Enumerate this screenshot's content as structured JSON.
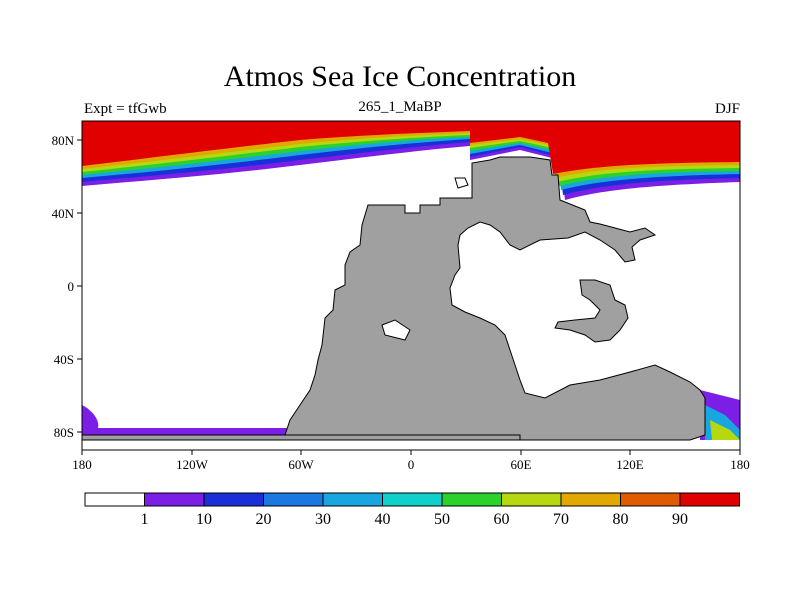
{
  "title": "Atmos Sea Ice Concentration",
  "subtitle_left": "Expt = tfGwb",
  "subtitle_center": "265_1_MaBP",
  "subtitle_right": "DJF",
  "x_tick_labels": [
    "180",
    "120W",
    "60W",
    "0",
    "60E",
    "120E",
    "180"
  ],
  "y_tick_labels": [
    "80N",
    "40N",
    "0",
    "40S",
    "80S"
  ],
  "colorbar": {
    "labels": [
      "1",
      "10",
      "20",
      "30",
      "40",
      "50",
      "60",
      "70",
      "80",
      "90"
    ],
    "colors": [
      "#ffffff",
      "#7b1fe6",
      "#1a2fd8",
      "#1a78e0",
      "#17a6e0",
      "#10d0cc",
      "#2cd12c",
      "#b5d810",
      "#e0a800",
      "#e05a00",
      "#e00000"
    ]
  },
  "colors": {
    "land": "#a0a0a0",
    "ice_high": "#e00000"
  }
}
